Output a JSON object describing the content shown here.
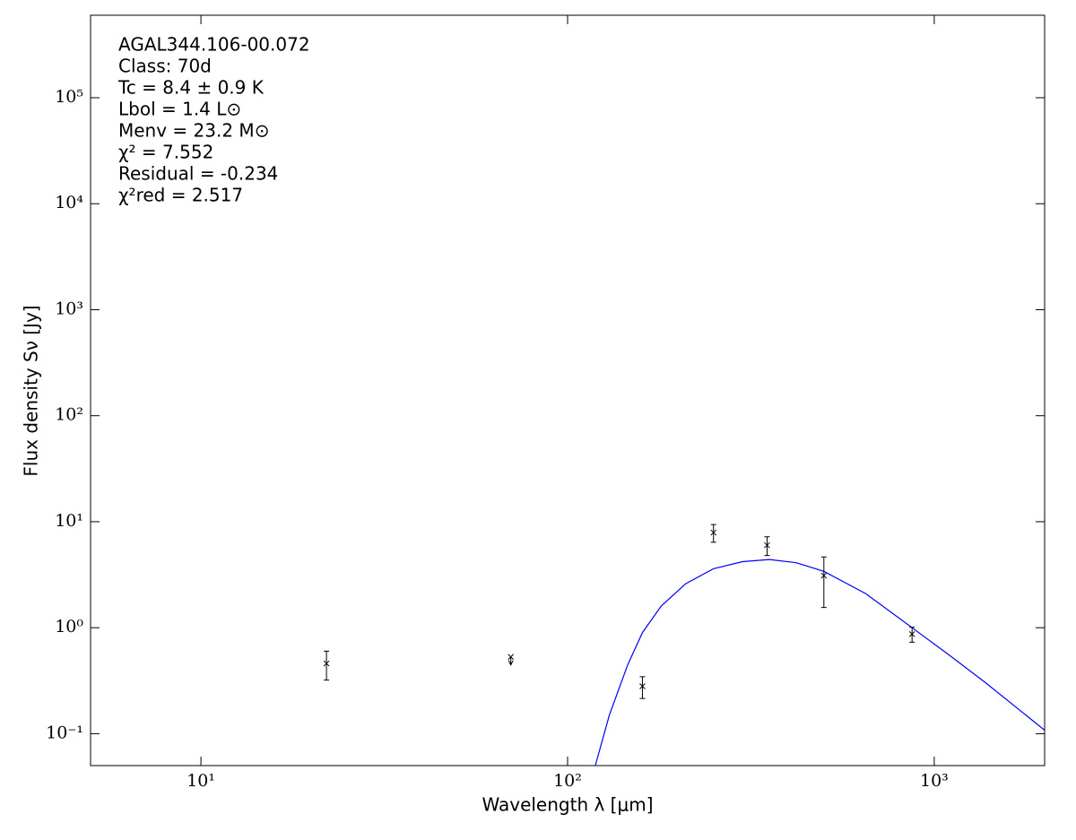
{
  "chart_data": {
    "type": "scatter",
    "x_label": "Wavelength λ [μm]",
    "y_label": "Flux density Sν [Jy]",
    "log_x": true,
    "log_y": true,
    "xlim": [
      5,
      2000
    ],
    "ylim": [
      0.05,
      600000
    ],
    "xticks": [
      {
        "value": 10,
        "label": "10¹"
      },
      {
        "value": 100,
        "label": "10²"
      },
      {
        "value": 1000,
        "label": "10³"
      }
    ],
    "yticks": [
      {
        "value": 0.1,
        "label": "10⁻¹"
      },
      {
        "value": 1,
        "label": "10⁰"
      },
      {
        "value": 10,
        "label": "10¹"
      },
      {
        "value": 100,
        "label": "10²"
      },
      {
        "value": 1000,
        "label": "10³"
      },
      {
        "value": 10000,
        "label": "10⁴"
      },
      {
        "value": 100000,
        "label": "10⁵"
      }
    ],
    "annotations": [
      "AGAL344.106-00.072",
      "Class: 70d",
      "Tc = 8.4 ± 0.9 K",
      "Lbol = 1.4 L⊙",
      "Menv = 23.2 M⊙",
      "χ² = 7.552",
      "Residual = -0.234",
      "χ²red = 2.517"
    ],
    "points": {
      "color": "#000000",
      "x": [
        22,
        70,
        160,
        250,
        350,
        500,
        870
      ],
      "y": [
        0.46,
        0.53,
        0.28,
        7.9,
        6.0,
        3.1,
        0.87
      ],
      "yerr": [
        0.14,
        null,
        0.065,
        1.5,
        1.2,
        1.55,
        0.14
      ],
      "upper_limit": [
        false,
        true,
        false,
        false,
        false,
        false,
        false
      ]
    },
    "model": {
      "color": "#0000ff",
      "x": [
        119,
        130,
        146,
        160,
        180,
        210,
        250,
        300,
        355,
        420,
        500,
        650,
        870,
        1100,
        1385,
        2000
      ],
      "y": [
        0.05,
        0.15,
        0.45,
        0.9,
        1.6,
        2.6,
        3.6,
        4.2,
        4.4,
        4.1,
        3.4,
        2.1,
        1.0,
        0.55,
        0.3,
        0.108
      ]
    }
  }
}
